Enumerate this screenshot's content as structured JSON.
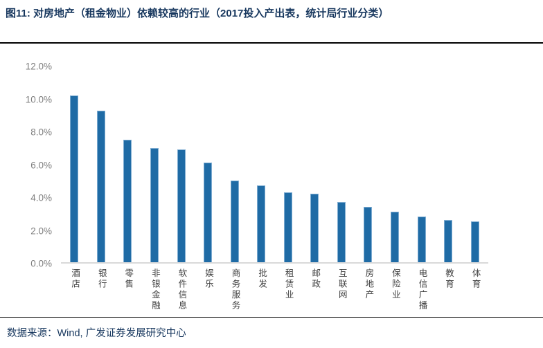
{
  "title": "图11:  对房地产（租金物业）依赖较高的行业（2017投入产出表，统计局行业分类）",
  "footer": {
    "text": "数据来源：Wind, 广发证券发展研究中心"
  },
  "colors": {
    "bar_fill": "#1F6BA5",
    "bar_border": "#7FADD2",
    "title_text": "#17375E",
    "footer_text": "#17375E",
    "tick_text": "#7F7F7F",
    "axis_line": "#D9D9D9",
    "rule_line": "#000000"
  },
  "chart_data": {
    "type": "bar",
    "title": "对房地产（租金物业）依赖较高的行业（2017投入产出表，统计局行业分类）",
    "categories": [
      "酒店",
      "银行",
      "零售",
      "非银金融",
      "软件信息",
      "娱乐",
      "商务服务",
      "批发",
      "租赁业",
      "邮政",
      "互联网",
      "房地产",
      "保险业",
      "电信广播",
      "教育",
      "体育"
    ],
    "values": [
      10.2,
      9.3,
      7.5,
      7.0,
      6.9,
      6.1,
      5.0,
      4.7,
      4.3,
      4.2,
      3.7,
      3.4,
      3.1,
      2.8,
      2.6,
      2.5
    ],
    "unit": "%",
    "xlabel": "",
    "ylabel": "",
    "ylim": [
      0,
      12
    ],
    "y_tick_step": 2,
    "y_ticks": [
      "0.0%",
      "2.0%",
      "4.0%",
      "6.0%",
      "8.0%",
      "10.0%",
      "12.0%"
    ],
    "grid": false,
    "legend": null,
    "bar_label_orientation": "vertical-upright"
  }
}
